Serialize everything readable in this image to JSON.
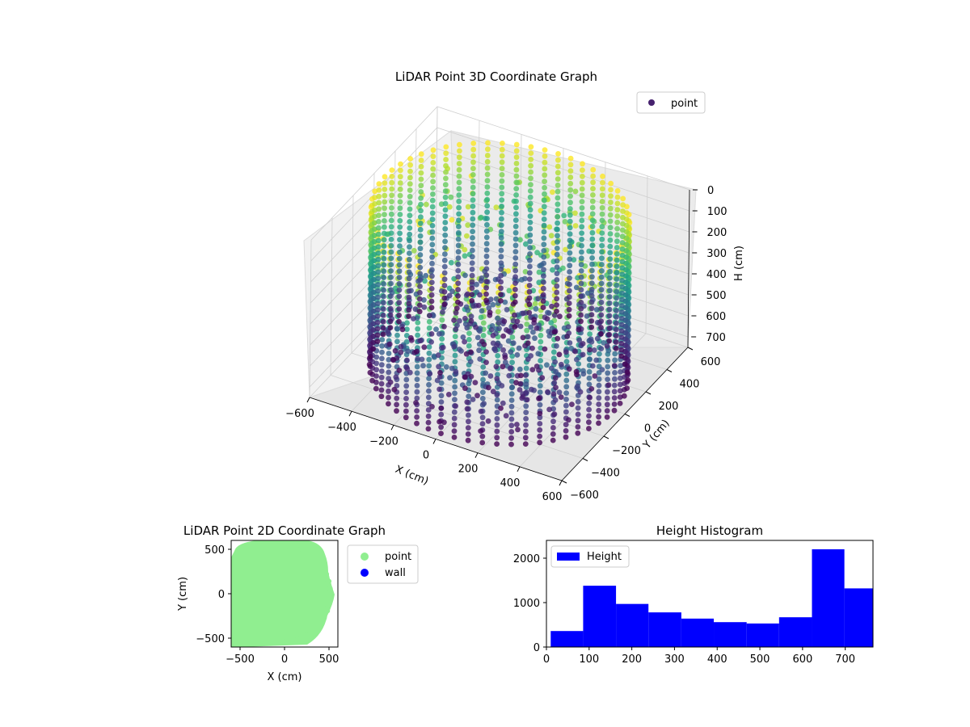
{
  "chart_data": [
    {
      "type": "scatter",
      "title": "LiDAR Point 3D Coordinate Graph",
      "xlabel": "X (cm)",
      "ylabel": "Y (cm)",
      "zlabel": "H (cm)",
      "xlim": [
        -600,
        600
      ],
      "ylim": [
        -600,
        600
      ],
      "zlim": [
        0,
        750
      ],
      "z_inverted": true,
      "xticks": [
        "−600",
        "−400",
        "−200",
        "0",
        "200",
        "400",
        "600"
      ],
      "yticks": [
        "−600",
        "−400",
        "−200",
        "0",
        "200",
        "400",
        "600"
      ],
      "zticks": [
        "0",
        "100",
        "200",
        "300",
        "400",
        "500",
        "600",
        "700"
      ],
      "colormap": "viridis",
      "legend": {
        "placement": "top-right",
        "entries": [
          {
            "label": "point",
            "color": "#46216e"
          }
        ]
      },
      "series": [
        {
          "name": "point",
          "shape": "cylindrical wall scan, radius ~550 cm, heights 0-750 cm, colored by height"
        }
      ]
    },
    {
      "type": "scatter",
      "title": "LiDAR Point 2D Coordinate Graph",
      "xlabel": "X (cm)",
      "ylabel": "Y (cm)",
      "xlim": [
        -600,
        600
      ],
      "ylim": [
        -600,
        600
      ],
      "xticks": [
        "−500",
        "0",
        "500"
      ],
      "yticks": [
        "500",
        "0",
        "−500"
      ],
      "legend": {
        "placement": "outside-right",
        "entries": [
          {
            "label": "point",
            "color": "#90ee90"
          },
          {
            "label": "wall",
            "color": "#0000ff"
          }
        ]
      },
      "series": [
        {
          "name": "point",
          "color": "#90ee90"
        },
        {
          "name": "wall",
          "color": "#0000ff"
        }
      ]
    },
    {
      "type": "bar",
      "subtype": "histogram",
      "title": "Height Histogram",
      "xlim": [
        0,
        765
      ],
      "ylim": [
        0,
        2400
      ],
      "xticks": [
        0,
        100,
        200,
        300,
        400,
        500,
        600,
        700
      ],
      "yticks": [
        0,
        1000,
        2000
      ],
      "bin_edges": [
        10,
        86,
        163,
        239,
        316,
        392,
        469,
        545,
        622,
        698,
        775
      ],
      "values": [
        360,
        1380,
        970,
        780,
        640,
        560,
        530,
        670,
        2200,
        1320
      ],
      "color": "#0000ff",
      "legend": {
        "placement": "top-left",
        "entries": [
          {
            "label": "Height",
            "color": "#0000ff"
          }
        ]
      },
      "series": [
        {
          "name": "Height",
          "values": [
            360,
            1380,
            970,
            780,
            640,
            560,
            530,
            670,
            2200,
            1320
          ]
        }
      ]
    }
  ]
}
